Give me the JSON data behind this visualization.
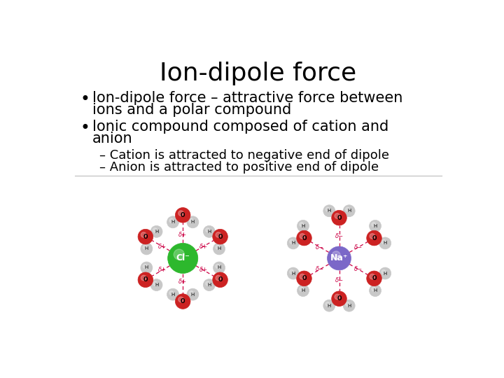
{
  "title": "Ion-dipole force",
  "title_fontsize": 26,
  "background_color": "#ffffff",
  "text_color": "#000000",
  "bullet1_line1": "Ion-dipole force – attractive force between",
  "bullet1_line2": "ions and a polar compound",
  "bullet2_line1": "Ionic compound composed of cation and",
  "bullet2_line2": "anion",
  "sub1": "– Cation is attracted to negative end of dipole",
  "sub2": "– Anion is attracted to positive end of dipole",
  "bullet_fontsize": 15,
  "sub_fontsize": 13,
  "cl_color": "#2db82d",
  "na_color": "#7b68c8",
  "o_color": "#cc2222",
  "h_color": "#c8c8c8",
  "delta_color": "#cc0044",
  "dot_color": "#cc0044"
}
